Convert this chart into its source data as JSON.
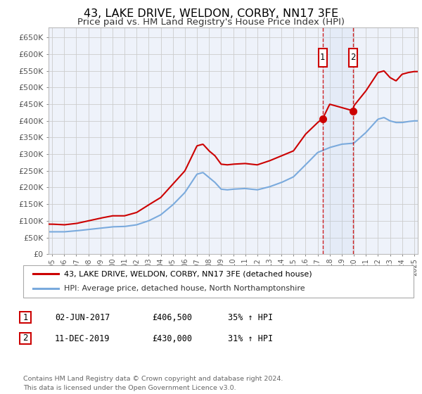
{
  "title": "43, LAKE DRIVE, WELDON, CORBY, NN17 3FE",
  "subtitle": "Price paid vs. HM Land Registry's House Price Index (HPI)",
  "title_fontsize": 11.5,
  "subtitle_fontsize": 9.5,
  "ylabel_ticks": [
    "£0",
    "£50K",
    "£100K",
    "£150K",
    "£200K",
    "£250K",
    "£300K",
    "£350K",
    "£400K",
    "£450K",
    "£500K",
    "£550K",
    "£600K",
    "£650K"
  ],
  "ytick_values": [
    0,
    50000,
    100000,
    150000,
    200000,
    250000,
    300000,
    350000,
    400000,
    450000,
    500000,
    550000,
    600000,
    650000
  ],
  "ylim": [
    0,
    680000
  ],
  "xlim_start": 1994.7,
  "xlim_end": 2025.3,
  "sale1_x": 2017.42,
  "sale1_y": 406500,
  "sale1_label": "1",
  "sale1_date": "02-JUN-2017",
  "sale1_price": "£406,500",
  "sale1_hpi": "35% ↑ HPI",
  "sale2_x": 2019.95,
  "sale2_y": 430000,
  "sale2_label": "2",
  "sale2_date": "11-DEC-2019",
  "sale2_price": "£430,000",
  "sale2_hpi": "31% ↑ HPI",
  "legend_line1": "43, LAKE DRIVE, WELDON, CORBY, NN17 3FE (detached house)",
  "legend_line2": "HPI: Average price, detached house, North Northamptonshire",
  "line1_color": "#cc0000",
  "line2_color": "#7aaadd",
  "background_color": "#eef2fa",
  "grid_color": "#cccccc",
  "annotation_text": "Contains HM Land Registry data © Crown copyright and database right 2024.\nThis data is licensed under the Open Government Licence v3.0.",
  "marker_box_color": "#cc0000",
  "red_key_years": [
    1995,
    1996,
    1997,
    1998,
    1999,
    2000,
    2001,
    2002,
    2003,
    2004,
    2005,
    2006,
    2007,
    2007.5,
    2008,
    2008.5,
    2009,
    2009.5,
    2010,
    2011,
    2012,
    2013,
    2014,
    2015,
    2016,
    2017,
    2017.42,
    2018,
    2019,
    2019.95,
    2020,
    2021,
    2022,
    2022.5,
    2023,
    2023.5,
    2024,
    2024.5,
    2025
  ],
  "red_key_vals": [
    90000,
    88000,
    92000,
    100000,
    108000,
    115000,
    115000,
    125000,
    148000,
    170000,
    210000,
    250000,
    325000,
    330000,
    310000,
    295000,
    270000,
    268000,
    270000,
    272000,
    268000,
    280000,
    295000,
    310000,
    360000,
    395000,
    406500,
    450000,
    440000,
    430000,
    445000,
    490000,
    545000,
    550000,
    530000,
    520000,
    540000,
    545000,
    548000
  ],
  "blue_key_years": [
    1995,
    1996,
    1997,
    1998,
    1999,
    2000,
    2001,
    2002,
    2003,
    2004,
    2005,
    2006,
    2007,
    2007.5,
    2008,
    2008.5,
    2009,
    2009.5,
    2010,
    2011,
    2012,
    2013,
    2014,
    2015,
    2016,
    2017,
    2018,
    2019,
    2020,
    2021,
    2022,
    2022.5,
    2023,
    2023.5,
    2024,
    2024.5,
    2025
  ],
  "blue_key_vals": [
    67000,
    67000,
    70000,
    74000,
    78000,
    82000,
    83000,
    88000,
    100000,
    118000,
    148000,
    185000,
    240000,
    245000,
    230000,
    215000,
    195000,
    193000,
    195000,
    197000,
    193000,
    202000,
    215000,
    232000,
    268000,
    305000,
    320000,
    330000,
    333000,
    365000,
    405000,
    410000,
    400000,
    395000,
    395000,
    398000,
    400000
  ]
}
